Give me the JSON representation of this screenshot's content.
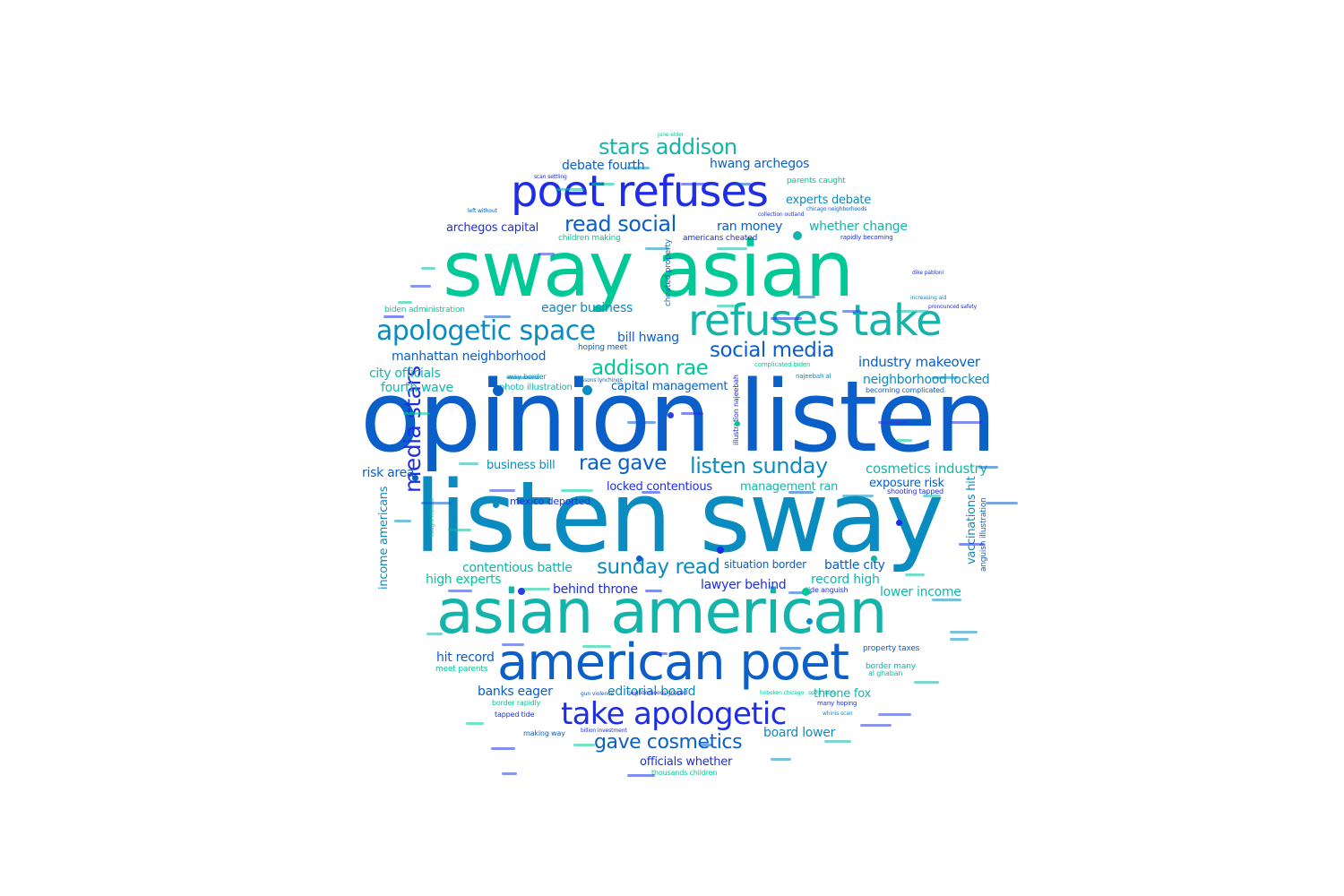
{
  "word_cloud": {
    "palette": [
      "#00c896",
      "#1e2ee6",
      "#0a5fc8",
      "#0a8cc0",
      "#14b4aa",
      "#2a3fe0"
    ],
    "words": [
      {
        "text": "opinion listen",
        "color": "#0a5fc8"
      },
      {
        "text": "listen sway",
        "color": "#0a8cc0"
      },
      {
        "text": "sway asian",
        "color": "#00c896"
      },
      {
        "text": "asian american",
        "color": "#14b4aa"
      },
      {
        "text": "american poet",
        "color": "#0a5fc8"
      },
      {
        "text": "poet refuses",
        "color": "#1e2ee6"
      },
      {
        "text": "refuses take",
        "color": "#14b4aa"
      },
      {
        "text": "take apologetic",
        "color": "#1e2ee6"
      },
      {
        "text": "apologetic space",
        "color": "#0a8cc0"
      },
      {
        "text": "stars addison",
        "color": "#14b4aa"
      },
      {
        "text": "read social",
        "color": "#0a5fc8"
      },
      {
        "text": "social media",
        "color": "#0a5fc8"
      },
      {
        "text": "addison rae",
        "color": "#00c896"
      },
      {
        "text": "listen sunday",
        "color": "#0a8cc0"
      },
      {
        "text": "rae gave",
        "color": "#0a5fc8"
      },
      {
        "text": "sunday read",
        "color": "#0a8cc0"
      },
      {
        "text": "gave cosmetics",
        "color": "#0a5fc8"
      },
      {
        "text": "media stars",
        "color": "#1e2ee6"
      },
      {
        "text": "cosmetics industry",
        "color": "#14b4aa"
      },
      {
        "text": "industry makeover",
        "color": "#0a5fc8"
      },
      {
        "text": "neighborhood locked",
        "color": "#0a8cc0"
      },
      {
        "text": "hwang archegos",
        "color": "#0a5fc8"
      },
      {
        "text": "debate fourth",
        "color": "#0a5fc8"
      },
      {
        "text": "experts debate",
        "color": "#0a8cc0"
      },
      {
        "text": "whether change",
        "color": "#14b4aa"
      },
      {
        "text": "ran money",
        "color": "#0a5fc8"
      },
      {
        "text": "archegos capital",
        "color": "#1e2ee6"
      },
      {
        "text": "eager business",
        "color": "#0a8cc0"
      },
      {
        "text": "bill hwang",
        "color": "#0a5fc8"
      },
      {
        "text": "manhattan neighborhood",
        "color": "#0a5fc8"
      },
      {
        "text": "city officials",
        "color": "#14b4aa"
      },
      {
        "text": "fourth wave",
        "color": "#14b4aa"
      },
      {
        "text": "capital management",
        "color": "#0a5fc8"
      },
      {
        "text": "business bill",
        "color": "#0a8cc0"
      },
      {
        "text": "locked contentious",
        "color": "#1e2ee6"
      },
      {
        "text": "management ran",
        "color": "#14b4aa"
      },
      {
        "text": "exposure risk",
        "color": "#0a5fc8"
      },
      {
        "text": "risk area",
        "color": "#0a5fc8"
      },
      {
        "text": "contentious battle",
        "color": "#14b4aa"
      },
      {
        "text": "battle city",
        "color": "#0a5fc8"
      },
      {
        "text": "situation border",
        "color": "#0a5fc8"
      },
      {
        "text": "lawyer behind",
        "color": "#1e2ee6"
      },
      {
        "text": "record high",
        "color": "#14b4aa"
      },
      {
        "text": "lower income",
        "color": "#14b4aa"
      },
      {
        "text": "high experts",
        "color": "#00c896"
      },
      {
        "text": "behind throne",
        "color": "#1e2ee6"
      },
      {
        "text": "hit record",
        "color": "#0a5fc8"
      },
      {
        "text": "banks eager",
        "color": "#0a5fc8"
      },
      {
        "text": "editorial board",
        "color": "#0a8cc0"
      },
      {
        "text": "throne fox",
        "color": "#14b4aa"
      },
      {
        "text": "board lower",
        "color": "#0a8cc0"
      },
      {
        "text": "officials whether",
        "color": "#1e2ee6"
      },
      {
        "text": "income americans",
        "color": "#0a8cc0"
      },
      {
        "text": "vaccinations hit",
        "color": "#0a8cc0"
      },
      {
        "text": "mexico deported",
        "color": "#1e2ee6"
      },
      {
        "text": "photo illustration",
        "color": "#14b4aa"
      },
      {
        "text": "parents caught",
        "color": "#00c896"
      },
      {
        "text": "biden administration",
        "color": "#00c896"
      },
      {
        "text": "americans cheated",
        "color": "#1e2ee6"
      },
      {
        "text": "children making",
        "color": "#00c896"
      },
      {
        "text": "meet parents",
        "color": "#00c896"
      },
      {
        "text": "border many",
        "color": "#14b4aa"
      },
      {
        "text": "property taxes",
        "color": "#0a5fc8"
      },
      {
        "text": "tapped tide",
        "color": "#1e2ee6"
      },
      {
        "text": "making way",
        "color": "#0a5fc8"
      },
      {
        "text": "thousands children",
        "color": "#00c896"
      },
      {
        "text": "border rapidly",
        "color": "#00c896"
      },
      {
        "text": "hoping meet",
        "color": "#0a5fc8"
      },
      {
        "text": "cheated property",
        "color": "#0a5fc8"
      },
      {
        "text": "becoming complicated",
        "color": "#0a5fc8"
      },
      {
        "text": "shooting tapped",
        "color": "#1e2ee6"
      },
      {
        "text": "tide anguish",
        "color": "#1e2ee6"
      },
      {
        "text": "anguish illustration",
        "color": "#0a5fc8"
      },
      {
        "text": "al ghaban",
        "color": "#14b4aa"
      },
      {
        "text": "illustration najeebah",
        "color": "#1e2ee6"
      },
      {
        "text": "rapidly becoming",
        "color": "#1e2ee6"
      },
      {
        "text": "way border",
        "color": "#0a8cc0"
      },
      {
        "text": "complicated biden",
        "color": "#00c896"
      },
      {
        "text": "najeebah al",
        "color": "#0a8cc0"
      },
      {
        "text": "many hoping",
        "color": "#1e2ee6"
      },
      {
        "text": "caught mexico",
        "color": "#00c896"
      },
      {
        "text": "gun violence",
        "color": "#0a5fc8"
      },
      {
        "text": "neighborhoods gripped",
        "color": "#1e2ee6"
      },
      {
        "text": "billion investment",
        "color": "#1e2ee6"
      },
      {
        "text": "collection outland",
        "color": "#1e2ee6"
      },
      {
        "text": "chicago neighborhoods",
        "color": "#0a5fc8"
      },
      {
        "text": "hoboken chicago",
        "color": "#00c896"
      },
      {
        "text": "sport days",
        "color": "#14b4aa"
      },
      {
        "text": "lessons lynchings",
        "color": "#0a5fc8"
      },
      {
        "text": "increasing aid",
        "color": "#0a8cc0"
      },
      {
        "text": "pronounced safety",
        "color": "#1e2ee6"
      },
      {
        "text": "june elder",
        "color": "#00c896"
      },
      {
        "text": "left without",
        "color": "#0a5fc8"
      },
      {
        "text": "scan settling",
        "color": "#1e2ee6"
      },
      {
        "text": "dike pabloni",
        "color": "#1e2ee6"
      },
      {
        "text": "whinis scan",
        "color": "#0a8cc0"
      }
    ],
    "dots": 14
  }
}
